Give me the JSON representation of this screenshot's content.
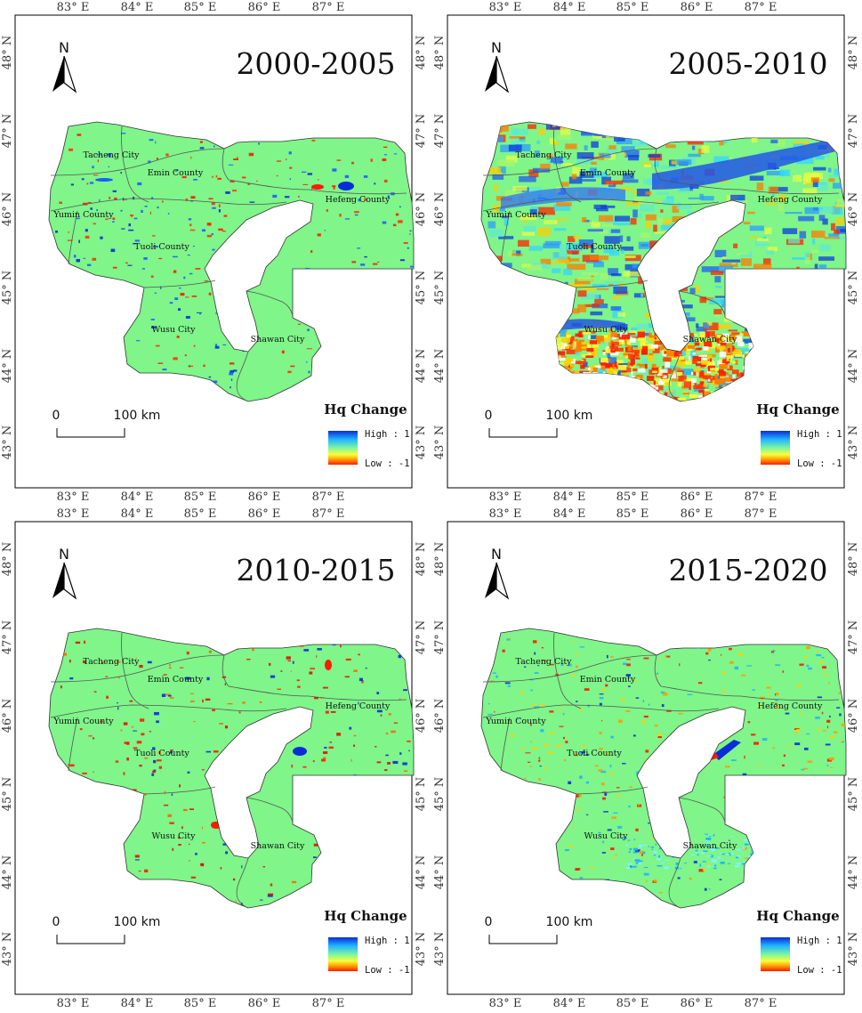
{
  "panels": [
    {
      "id": "p1",
      "title": "2000-2005",
      "variant": "sparse-mixed"
    },
    {
      "id": "p2",
      "title": "2005-2010",
      "variant": "dense"
    },
    {
      "id": "p3",
      "title": "2010-2015",
      "variant": "sparse-red"
    },
    {
      "id": "p4",
      "title": "2015-2020",
      "variant": "sparse-mixed2"
    }
  ],
  "counties": [
    "Tacheng City",
    "Emin County",
    "Yumin County",
    "Tuoli County",
    "Hefeng County",
    "Wusu City",
    "Shawan City"
  ],
  "legend": {
    "title": "Hq Change",
    "high": "High : 1",
    "low": "Low : -1",
    "colors": [
      "#0a2dd8",
      "#20b4ff",
      "#7cf5a0",
      "#f7ff3a",
      "#ff9a00",
      "#ff1a00"
    ]
  },
  "scalebar": {
    "zero": "0",
    "distance": "100 km"
  },
  "north_label": "N",
  "lon_ticks": [
    "83° E",
    "84° E",
    "85° E",
    "86° E",
    "87° E"
  ],
  "lat_ticks": [
    "48° N",
    "47° N",
    "46° N",
    "45° N",
    "44° N",
    "43° N"
  ],
  "colors": {
    "land": "#7ff58a",
    "border": "#555555",
    "lake": "#ffffff",
    "frame": "#000000"
  }
}
